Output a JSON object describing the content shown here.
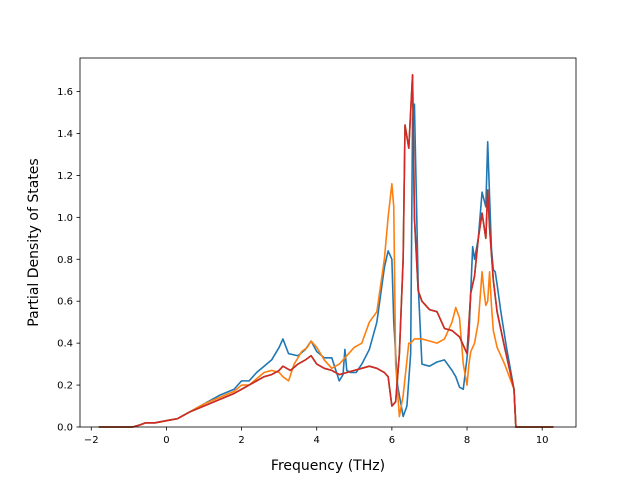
{
  "chart_data": {
    "type": "line",
    "xlabel": "Frequency (THz)",
    "ylabel": "Partial Density of States",
    "xlim": [
      -2.3,
      10.9
    ],
    "ylim": [
      0.0,
      1.76
    ],
    "xticks": [
      -2,
      0,
      2,
      4,
      6,
      8,
      10
    ],
    "yticks": [
      0.0,
      0.2,
      0.4,
      0.6,
      0.8,
      1.0,
      1.2,
      1.4,
      1.6
    ],
    "xtick_labels": [
      "−2",
      "0",
      "2",
      "4",
      "6",
      "8",
      "10"
    ],
    "ytick_labels": [
      "0.0",
      "0.2",
      "0.4",
      "0.6",
      "0.8",
      "1.0",
      "1.2",
      "1.4",
      "1.6"
    ],
    "grid": false,
    "legend": "none",
    "series": [
      {
        "color": "#1f77b4",
        "x": [
          -1.8,
          -0.9,
          -0.7,
          -0.55,
          -0.3,
          0,
          0.3,
          0.6,
          1,
          1.4,
          1.8,
          2,
          2.2,
          2.4,
          2.6,
          2.8,
          3,
          3.1,
          3.25,
          3.5,
          3.7,
          3.85,
          4,
          4.2,
          4.4,
          4.6,
          4.7,
          4.75,
          4.8,
          4.9,
          5.05,
          5.2,
          5.4,
          5.6,
          5.8,
          5.9,
          6,
          6.05,
          6.15,
          6.3,
          6.4,
          6.5,
          6.55,
          6.6,
          6.7,
          6.8,
          7,
          7.2,
          7.4,
          7.6,
          7.7,
          7.8,
          7.9,
          8,
          8.05,
          8.1,
          8.15,
          8.2,
          8.3,
          8.4,
          8.5,
          8.55,
          8.6,
          8.65,
          8.7,
          8.75,
          8.8,
          8.9,
          9.05,
          9.25,
          9.3,
          10.3
        ],
        "y": [
          0,
          0,
          0.01,
          0.02,
          0.02,
          0.03,
          0.04,
          0.07,
          0.11,
          0.15,
          0.18,
          0.22,
          0.22,
          0.26,
          0.29,
          0.32,
          0.38,
          0.42,
          0.35,
          0.34,
          0.37,
          0.41,
          0.36,
          0.33,
          0.33,
          0.22,
          0.25,
          0.37,
          0.27,
          0.26,
          0.26,
          0.3,
          0.37,
          0.5,
          0.76,
          0.84,
          0.8,
          0.5,
          0.2,
          0.05,
          0.1,
          0.35,
          1.47,
          1.54,
          0.68,
          0.3,
          0.29,
          0.31,
          0.32,
          0.27,
          0.24,
          0.19,
          0.18,
          0.33,
          0.43,
          0.65,
          0.86,
          0.8,
          0.9,
          1.12,
          1.05,
          1.36,
          1.1,
          0.85,
          0.75,
          0.74,
          0.68,
          0.55,
          0.38,
          0.18,
          0,
          0
        ]
      },
      {
        "color": "#ff7f0e",
        "x": [
          -1.8,
          -0.9,
          -0.7,
          -0.55,
          -0.3,
          0,
          0.3,
          0.6,
          1,
          1.4,
          1.8,
          2,
          2.2,
          2.4,
          2.6,
          2.8,
          3,
          3.1,
          3.25,
          3.4,
          3.6,
          3.75,
          3.85,
          4,
          4.2,
          4.4,
          4.6,
          4.8,
          5,
          5.2,
          5.4,
          5.6,
          5.8,
          5.9,
          6.0,
          6.05,
          6.1,
          6.2,
          6.3,
          6.45,
          6.5,
          6.6,
          6.8,
          7,
          7.2,
          7.4,
          7.6,
          7.7,
          7.8,
          7.9,
          8,
          8.05,
          8.1,
          8.2,
          8.3,
          8.4,
          8.45,
          8.5,
          8.55,
          8.6,
          8.65,
          8.7,
          8.8,
          9,
          9.25,
          9.3,
          10.3
        ],
        "y": [
          0,
          0,
          0.01,
          0.02,
          0.02,
          0.03,
          0.04,
          0.07,
          0.11,
          0.14,
          0.17,
          0.2,
          0.2,
          0.23,
          0.26,
          0.27,
          0.26,
          0.24,
          0.22,
          0.3,
          0.36,
          0.38,
          0.41,
          0.38,
          0.32,
          0.28,
          0.3,
          0.34,
          0.38,
          0.4,
          0.5,
          0.55,
          0.8,
          1.0,
          1.16,
          1.05,
          0.3,
          0.05,
          0.15,
          0.4,
          0.4,
          0.42,
          0.42,
          0.41,
          0.4,
          0.42,
          0.5,
          0.57,
          0.52,
          0.3,
          0.2,
          0.3,
          0.36,
          0.4,
          0.5,
          0.74,
          0.65,
          0.58,
          0.6,
          0.74,
          0.58,
          0.46,
          0.38,
          0.3,
          0.18,
          0,
          0
        ]
      },
      {
        "color": "#2ca02c",
        "x": [
          -1.8,
          -0.9,
          -0.7,
          -0.55,
          -0.3,
          0,
          0.3,
          0.6,
          1,
          1.4,
          1.8,
          2,
          2.2,
          2.4,
          2.6,
          2.8,
          3,
          3.1,
          3.3,
          3.5,
          3.7,
          3.85,
          4,
          4.2,
          4.4,
          4.6,
          4.8,
          5,
          5.2,
          5.4,
          5.6,
          5.8,
          5.9,
          6,
          6.1,
          6.2,
          6.3,
          6.35,
          6.45,
          6.55,
          6.6,
          6.7,
          6.8,
          7,
          7.2,
          7.4,
          7.6,
          7.8,
          8,
          8.1,
          8.2,
          8.3,
          8.4,
          8.5,
          8.55,
          8.6,
          8.7,
          8.8,
          9,
          9.25,
          9.3,
          10.3
        ],
        "y": [
          0,
          0,
          0.01,
          0.02,
          0.02,
          0.03,
          0.04,
          0.07,
          0.1,
          0.13,
          0.16,
          0.18,
          0.2,
          0.22,
          0.24,
          0.25,
          0.27,
          0.29,
          0.27,
          0.3,
          0.32,
          0.34,
          0.3,
          0.28,
          0.27,
          0.25,
          0.26,
          0.27,
          0.28,
          0.29,
          0.28,
          0.26,
          0.24,
          0.1,
          0.12,
          0.35,
          0.8,
          1.44,
          1.33,
          1.68,
          1.0,
          0.65,
          0.6,
          0.56,
          0.55,
          0.47,
          0.46,
          0.43,
          0.35,
          0.64,
          0.72,
          0.9,
          1.02,
          0.9,
          1.13,
          0.95,
          0.7,
          0.55,
          0.38,
          0.18,
          0,
          0
        ]
      },
      {
        "color": "#d62728",
        "x": [
          -1.8,
          -0.9,
          -0.7,
          -0.55,
          -0.3,
          0,
          0.3,
          0.6,
          1,
          1.4,
          1.8,
          2,
          2.2,
          2.4,
          2.6,
          2.8,
          3,
          3.1,
          3.3,
          3.5,
          3.7,
          3.85,
          4,
          4.2,
          4.4,
          4.6,
          4.8,
          5,
          5.2,
          5.4,
          5.6,
          5.8,
          5.9,
          6,
          6.1,
          6.2,
          6.3,
          6.35,
          6.45,
          6.55,
          6.6,
          6.7,
          6.8,
          7,
          7.2,
          7.4,
          7.6,
          7.8,
          8,
          8.1,
          8.2,
          8.3,
          8.4,
          8.5,
          8.55,
          8.6,
          8.7,
          8.8,
          9,
          9.25,
          9.3,
          10.3
        ],
        "y": [
          0,
          0,
          0.01,
          0.02,
          0.02,
          0.03,
          0.04,
          0.07,
          0.1,
          0.13,
          0.16,
          0.18,
          0.2,
          0.22,
          0.24,
          0.25,
          0.27,
          0.29,
          0.27,
          0.3,
          0.32,
          0.34,
          0.3,
          0.28,
          0.27,
          0.25,
          0.26,
          0.27,
          0.28,
          0.29,
          0.28,
          0.26,
          0.24,
          0.1,
          0.12,
          0.35,
          0.8,
          1.44,
          1.33,
          1.68,
          1.0,
          0.65,
          0.6,
          0.56,
          0.55,
          0.47,
          0.46,
          0.43,
          0.35,
          0.64,
          0.72,
          0.9,
          1.02,
          0.9,
          1.13,
          0.95,
          0.7,
          0.55,
          0.38,
          0.18,
          0,
          0
        ]
      }
    ]
  }
}
